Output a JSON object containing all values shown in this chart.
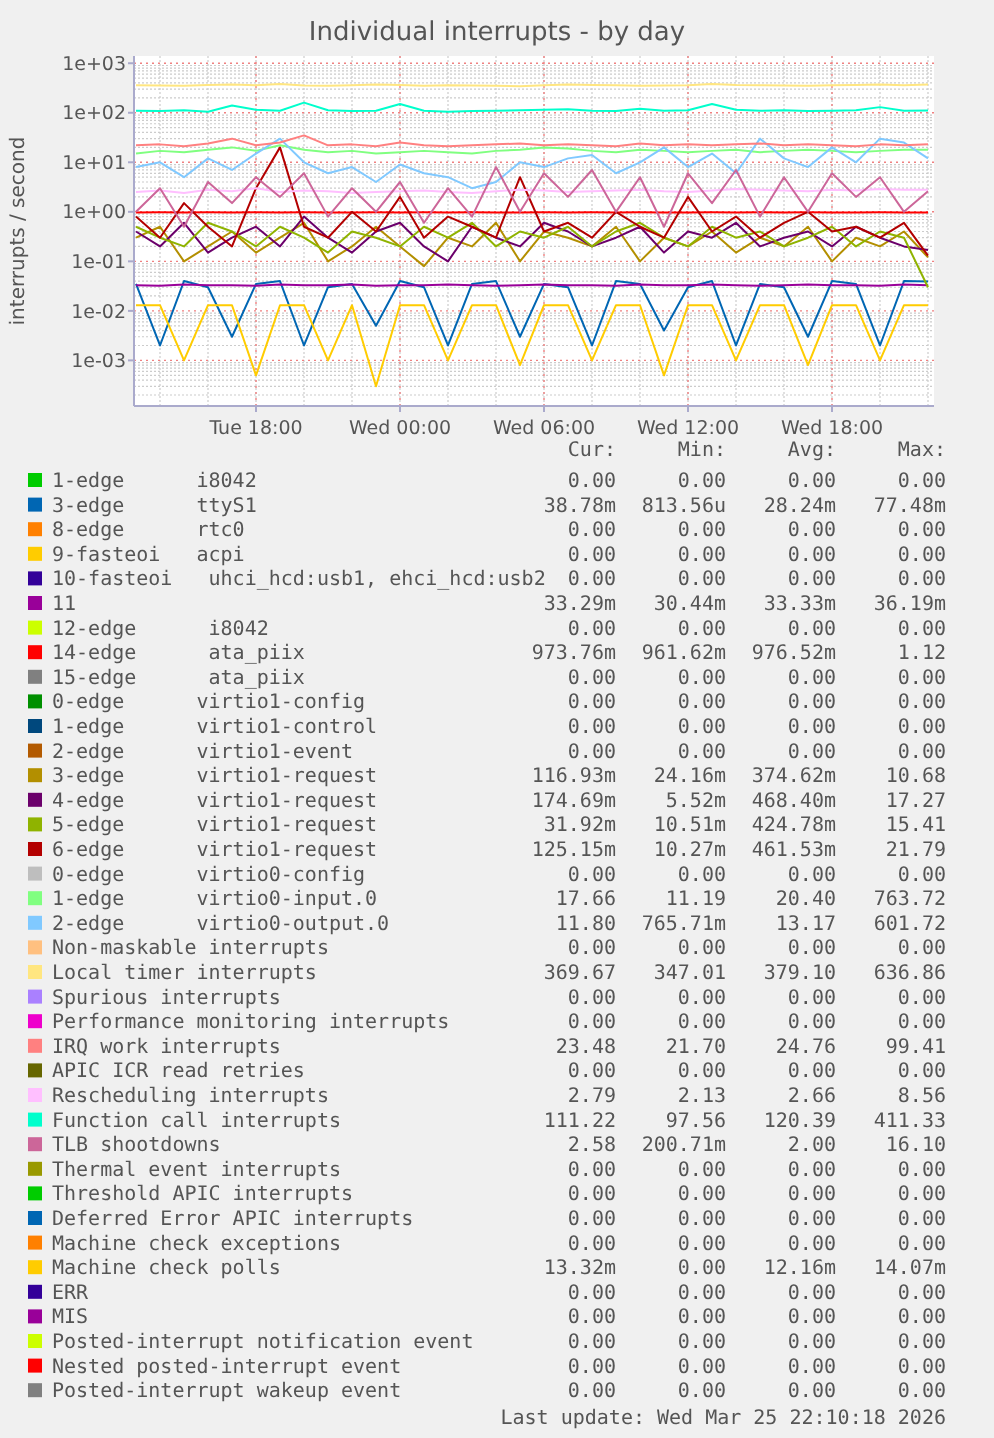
{
  "chart_data": {
    "type": "line",
    "title": "Individual interrupts - by day",
    "ylabel": "interrupts / second",
    "log": "y",
    "grid": true,
    "legend": "bottom",
    "line_style": "solid",
    "marker": "none",
    "xlim": [
      "2026-03-24T12:55",
      "2026-03-25T22:15"
    ],
    "xticks": [
      {
        "value": "2026-03-24T18:00",
        "label": "Tue 18:00"
      },
      {
        "value": "2026-03-25T00:00",
        "label": "Wed 00:00"
      },
      {
        "value": "2026-03-25T06:00",
        "label": "Wed 06:00"
      },
      {
        "value": "2026-03-25T12:00",
        "label": "Wed 12:00"
      },
      {
        "value": "2026-03-25T18:00",
        "label": "Wed 18:00"
      }
    ],
    "ylim": [
      0.00012,
      1400
    ],
    "yticks": [
      {
        "value": 0.001,
        "label": "1e-03"
      },
      {
        "value": 0.01,
        "label": "1e-02"
      },
      {
        "value": 0.1,
        "label": "1e-01"
      },
      {
        "value": 1,
        "label": "1e+00"
      },
      {
        "value": 10,
        "label": "1e+01"
      },
      {
        "value": 100,
        "label": "1e+02"
      },
      {
        "value": 1000,
        "label": "1e+03"
      }
    ],
    "x": [
      "2026-03-24T13:00",
      "2026-03-24T14:00",
      "2026-03-24T15:00",
      "2026-03-24T16:00",
      "2026-03-24T17:00",
      "2026-03-24T18:00",
      "2026-03-24T19:00",
      "2026-03-24T20:00",
      "2026-03-24T21:00",
      "2026-03-24T22:00",
      "2026-03-24T23:00",
      "2026-03-25T00:00",
      "2026-03-25T01:00",
      "2026-03-25T02:00",
      "2026-03-25T03:00",
      "2026-03-25T04:00",
      "2026-03-25T05:00",
      "2026-03-25T06:00",
      "2026-03-25T07:00",
      "2026-03-25T08:00",
      "2026-03-25T09:00",
      "2026-03-25T10:00",
      "2026-03-25T11:00",
      "2026-03-25T12:00",
      "2026-03-25T13:00",
      "2026-03-25T14:00",
      "2026-03-25T15:00",
      "2026-03-25T16:00",
      "2026-03-25T17:00",
      "2026-03-25T18:00",
      "2026-03-25T19:00",
      "2026-03-25T20:00",
      "2026-03-25T21:00",
      "2026-03-25T22:00"
    ],
    "series": [
      {
        "name": "1-edge      i8042",
        "color": "#00cc00",
        "values": [
          null,
          null,
          null,
          null,
          null,
          null,
          null,
          null,
          null,
          null,
          null,
          null,
          null,
          null,
          null,
          null,
          null,
          null,
          null,
          null,
          null,
          null,
          null,
          null,
          null,
          null,
          null,
          null,
          null,
          null,
          null,
          null,
          null,
          null
        ]
      },
      {
        "name": "3-edge      ttyS1",
        "color": "#0066b3",
        "values": [
          0.035,
          0.002,
          0.04,
          0.03,
          0.003,
          0.035,
          0.04,
          0.002,
          0.03,
          0.035,
          0.005,
          0.04,
          0.03,
          0.002,
          0.035,
          0.04,
          0.003,
          0.035,
          0.03,
          0.002,
          0.04,
          0.035,
          0.004,
          0.03,
          0.04,
          0.002,
          0.035,
          0.03,
          0.003,
          0.04,
          0.035,
          0.002,
          0.04,
          0.039
        ]
      },
      {
        "name": "8-edge      rtc0",
        "color": "#ff8000",
        "values": [
          null,
          null,
          null,
          null,
          null,
          null,
          null,
          null,
          null,
          null,
          null,
          null,
          null,
          null,
          null,
          null,
          null,
          null,
          null,
          null,
          null,
          null,
          null,
          null,
          null,
          null,
          null,
          null,
          null,
          null,
          null,
          null,
          null,
          null
        ]
      },
      {
        "name": "9-fasteoi   acpi",
        "color": "#ffcc00",
        "values": [
          null,
          null,
          null,
          null,
          null,
          null,
          null,
          null,
          null,
          null,
          null,
          null,
          null,
          null,
          null,
          null,
          null,
          null,
          null,
          null,
          null,
          null,
          null,
          null,
          null,
          null,
          null,
          null,
          null,
          null,
          null,
          null,
          null,
          null
        ]
      },
      {
        "name": "10-fasteoi   uhci_hcd:usb1, ehci_hcd:usb2",
        "color": "#330099",
        "values": [
          null,
          null,
          null,
          null,
          null,
          null,
          null,
          null,
          null,
          null,
          null,
          null,
          null,
          null,
          null,
          null,
          null,
          null,
          null,
          null,
          null,
          null,
          null,
          null,
          null,
          null,
          null,
          null,
          null,
          null,
          null,
          null,
          null,
          null
        ]
      },
      {
        "name": "11",
        "color": "#990099",
        "values": [
          0.033,
          0.032,
          0.034,
          0.033,
          0.033,
          0.032,
          0.034,
          0.033,
          0.033,
          0.034,
          0.032,
          0.033,
          0.033,
          0.034,
          0.033,
          0.032,
          0.033,
          0.034,
          0.033,
          0.033,
          0.032,
          0.034,
          0.033,
          0.033,
          0.034,
          0.033,
          0.032,
          0.033,
          0.034,
          0.033,
          0.033,
          0.032,
          0.034,
          0.033
        ]
      },
      {
        "name": "12-edge      i8042",
        "color": "#ccff00",
        "values": [
          null,
          null,
          null,
          null,
          null,
          null,
          null,
          null,
          null,
          null,
          null,
          null,
          null,
          null,
          null,
          null,
          null,
          null,
          null,
          null,
          null,
          null,
          null,
          null,
          null,
          null,
          null,
          null,
          null,
          null,
          null,
          null,
          null,
          null
        ]
      },
      {
        "name": "14-edge      ata_piix",
        "color": "#ff0000",
        "values": [
          0.97,
          0.98,
          0.97,
          0.98,
          0.97,
          0.98,
          0.97,
          0.98,
          0.97,
          0.97,
          0.98,
          0.97,
          0.98,
          0.97,
          0.98,
          0.97,
          0.97,
          0.98,
          0.97,
          0.98,
          0.97,
          0.98,
          0.97,
          0.97,
          0.98,
          0.97,
          0.98,
          0.97,
          0.98,
          0.97,
          0.97,
          0.98,
          0.97,
          0.97
        ]
      },
      {
        "name": "15-edge      ata_piix",
        "color": "#808080",
        "values": [
          null,
          null,
          null,
          null,
          null,
          null,
          null,
          null,
          null,
          null,
          null,
          null,
          null,
          null,
          null,
          null,
          null,
          null,
          null,
          null,
          null,
          null,
          null,
          null,
          null,
          null,
          null,
          null,
          null,
          null,
          null,
          null,
          null,
          null
        ]
      },
      {
        "name": "0-edge      virtio1-config",
        "color": "#008f00",
        "values": [
          null,
          null,
          null,
          null,
          null,
          null,
          null,
          null,
          null,
          null,
          null,
          null,
          null,
          null,
          null,
          null,
          null,
          null,
          null,
          null,
          null,
          null,
          null,
          null,
          null,
          null,
          null,
          null,
          null,
          null,
          null,
          null,
          null,
          null
        ]
      },
      {
        "name": "1-edge      virtio1-control",
        "color": "#00487d",
        "values": [
          null,
          null,
          null,
          null,
          null,
          null,
          null,
          null,
          null,
          null,
          null,
          null,
          null,
          null,
          null,
          null,
          null,
          null,
          null,
          null,
          null,
          null,
          null,
          null,
          null,
          null,
          null,
          null,
          null,
          null,
          null,
          null,
          null,
          null
        ]
      },
      {
        "name": "2-edge      virtio1-event",
        "color": "#b35a00",
        "values": [
          null,
          null,
          null,
          null,
          null,
          null,
          null,
          null,
          null,
          null,
          null,
          null,
          null,
          null,
          null,
          null,
          null,
          null,
          null,
          null,
          null,
          null,
          null,
          null,
          null,
          null,
          null,
          null,
          null,
          null,
          null,
          null,
          null,
          null
        ]
      },
      {
        "name": "3-edge      virtio1-request",
        "color": "#b38f00",
        "values": [
          0.3,
          0.5,
          0.1,
          0.2,
          0.4,
          0.15,
          0.3,
          0.6,
          0.1,
          0.2,
          0.5,
          0.2,
          0.08,
          0.3,
          0.2,
          0.6,
          0.1,
          0.4,
          0.3,
          0.2,
          0.5,
          0.1,
          0.3,
          0.2,
          0.4,
          0.15,
          0.3,
          0.2,
          0.5,
          0.1,
          0.3,
          0.2,
          0.4,
          0.12
        ]
      },
      {
        "name": "4-edge      virtio1-request",
        "color": "#6b006b",
        "values": [
          0.4,
          0.2,
          0.6,
          0.15,
          0.3,
          0.5,
          0.2,
          0.8,
          0.3,
          0.15,
          0.4,
          0.6,
          0.2,
          0.1,
          0.5,
          0.3,
          0.2,
          0.6,
          0.4,
          0.2,
          0.3,
          0.5,
          0.15,
          0.4,
          0.3,
          0.6,
          0.2,
          0.3,
          0.4,
          0.2,
          0.5,
          0.3,
          0.2,
          0.17
        ]
      },
      {
        "name": "5-edge      virtio1-request",
        "color": "#8fb300",
        "values": [
          0.5,
          0.3,
          0.2,
          0.6,
          0.4,
          0.2,
          0.5,
          0.3,
          0.15,
          0.4,
          0.3,
          0.2,
          0.5,
          0.3,
          0.6,
          0.2,
          0.4,
          0.3,
          0.5,
          0.2,
          0.4,
          0.6,
          0.3,
          0.2,
          0.5,
          0.3,
          0.4,
          0.2,
          0.3,
          0.5,
          0.2,
          0.4,
          0.3,
          0.03
        ]
      },
      {
        "name": "6-edge      virtio1-request",
        "color": "#b30000",
        "values": [
          0.8,
          0.3,
          1.5,
          0.5,
          0.2,
          3,
          20,
          0.5,
          0.3,
          1,
          0.4,
          2,
          0.3,
          0.8,
          0.5,
          0.3,
          5,
          0.4,
          0.6,
          0.3,
          1,
          0.5,
          0.3,
          2,
          0.4,
          0.8,
          0.3,
          0.6,
          1,
          0.4,
          0.5,
          0.3,
          0.6,
          0.13
        ]
      },
      {
        "name": "0-edge      virtio0-config",
        "color": "#bebebe",
        "values": [
          null,
          null,
          null,
          null,
          null,
          null,
          null,
          null,
          null,
          null,
          null,
          null,
          null,
          null,
          null,
          null,
          null,
          null,
          null,
          null,
          null,
          null,
          null,
          null,
          null,
          null,
          null,
          null,
          null,
          null,
          null,
          null,
          null,
          null
        ]
      },
      {
        "name": "1-edge      virtio0-input.0",
        "color": "#80ff80",
        "values": [
          15,
          17,
          16,
          18,
          20,
          17,
          22,
          18,
          16,
          17,
          15,
          16,
          17,
          16,
          15,
          17,
          18,
          20,
          19,
          17,
          16,
          18,
          17,
          16,
          17,
          18,
          16,
          17,
          18,
          17,
          16,
          17,
          18,
          18
        ]
      },
      {
        "name": "2-edge      virtio0-output.0",
        "color": "#80c9ff",
        "values": [
          8,
          10,
          5,
          12,
          7,
          15,
          30,
          10,
          6,
          8,
          4,
          9,
          6,
          5,
          3,
          4,
          10,
          8,
          12,
          14,
          6,
          10,
          20,
          8,
          15,
          6,
          30,
          12,
          8,
          20,
          10,
          30,
          25,
          12
        ]
      },
      {
        "name": "Non-maskable interrupts",
        "color": "#ffc080",
        "values": [
          null,
          null,
          null,
          null,
          null,
          null,
          null,
          null,
          null,
          null,
          null,
          null,
          null,
          null,
          null,
          null,
          null,
          null,
          null,
          null,
          null,
          null,
          null,
          null,
          null,
          null,
          null,
          null,
          null,
          null,
          null,
          null,
          null,
          null
        ]
      },
      {
        "name": "Local timer interrupts",
        "color": "#ffe680",
        "values": [
          360,
          355,
          350,
          365,
          370,
          360,
          380,
          355,
          350,
          360,
          370,
          365,
          350,
          360,
          355,
          350,
          345,
          360,
          370,
          365,
          360,
          350,
          355,
          360,
          380,
          365,
          360,
          355,
          350,
          360,
          365,
          370,
          360,
          370
        ]
      },
      {
        "name": "Spurious interrupts",
        "color": "#aa80ff",
        "values": [
          null,
          null,
          null,
          null,
          null,
          null,
          null,
          null,
          null,
          null,
          null,
          null,
          null,
          null,
          null,
          null,
          null,
          null,
          null,
          null,
          null,
          null,
          null,
          null,
          null,
          null,
          null,
          null,
          null,
          null,
          null,
          null,
          null,
          null
        ]
      },
      {
        "name": "Performance monitoring interrupts",
        "color": "#ee00cc",
        "values": [
          null,
          null,
          null,
          null,
          null,
          null,
          null,
          null,
          null,
          null,
          null,
          null,
          null,
          null,
          null,
          null,
          null,
          null,
          null,
          null,
          null,
          null,
          null,
          null,
          null,
          null,
          null,
          null,
          null,
          null,
          null,
          null,
          null,
          null
        ]
      },
      {
        "name": "IRQ work interrupts",
        "color": "#ff8080",
        "values": [
          22,
          23,
          21,
          24,
          30,
          22,
          25,
          35,
          22,
          23,
          21,
          25,
          22,
          21,
          22,
          23,
          24,
          22,
          23,
          22,
          21,
          24,
          22,
          23,
          22,
          23,
          24,
          22,
          23,
          22,
          21,
          23,
          22,
          23
        ]
      },
      {
        "name": "APIC ICR read retries",
        "color": "#666600",
        "values": [
          null,
          null,
          null,
          null,
          null,
          null,
          null,
          null,
          null,
          null,
          null,
          null,
          null,
          null,
          null,
          null,
          null,
          null,
          null,
          null,
          null,
          null,
          null,
          null,
          null,
          null,
          null,
          null,
          null,
          null,
          null,
          null,
          null,
          null
        ]
      },
      {
        "name": "Rescheduling interrupts",
        "color": "#ffbfff",
        "values": [
          2.5,
          2.7,
          2.4,
          2.8,
          2.6,
          3,
          2.5,
          2.7,
          2.6,
          2.4,
          2.5,
          2.6,
          2.7,
          2.5,
          2.4,
          2.6,
          2.8,
          2.7,
          2.5,
          2.6,
          2.7,
          2.8,
          2.6,
          2.5,
          2.7,
          2.9,
          2.8,
          2.7,
          2.6,
          2.8,
          2.7,
          2.9,
          2.8,
          2.8
        ]
      },
      {
        "name": "Function call interrupts",
        "color": "#00ffcc",
        "values": [
          110,
          108,
          112,
          105,
          140,
          115,
          110,
          160,
          112,
          108,
          110,
          150,
          110,
          105,
          108,
          110,
          112,
          115,
          118,
          110,
          108,
          120,
          110,
          112,
          150,
          115,
          110,
          112,
          108,
          110,
          112,
          130,
          110,
          111
        ]
      },
      {
        "name": "TLB shootdowns",
        "color": "#cc6699",
        "values": [
          1,
          3,
          0.5,
          4,
          1.5,
          5,
          2,
          6,
          0.8,
          3,
          1,
          4,
          0.6,
          3,
          0.8,
          8,
          1,
          6,
          2,
          7,
          1,
          5,
          0.5,
          6,
          1.5,
          7,
          0.8,
          5,
          1,
          6,
          2,
          5,
          1,
          2.6
        ]
      },
      {
        "name": "Thermal event interrupts",
        "color": "#999900",
        "values": [
          null,
          null,
          null,
          null,
          null,
          null,
          null,
          null,
          null,
          null,
          null,
          null,
          null,
          null,
          null,
          null,
          null,
          null,
          null,
          null,
          null,
          null,
          null,
          null,
          null,
          null,
          null,
          null,
          null,
          null,
          null,
          null,
          null,
          null
        ]
      },
      {
        "name": "Threshold APIC interrupts",
        "color": "#00cc00",
        "values": [
          null,
          null,
          null,
          null,
          null,
          null,
          null,
          null,
          null,
          null,
          null,
          null,
          null,
          null,
          null,
          null,
          null,
          null,
          null,
          null,
          null,
          null,
          null,
          null,
          null,
          null,
          null,
          null,
          null,
          null,
          null,
          null,
          null,
          null
        ]
      },
      {
        "name": "Deferred Error APIC interrupts",
        "color": "#0066b3",
        "values": [
          null,
          null,
          null,
          null,
          null,
          null,
          null,
          null,
          null,
          null,
          null,
          null,
          null,
          null,
          null,
          null,
          null,
          null,
          null,
          null,
          null,
          null,
          null,
          null,
          null,
          null,
          null,
          null,
          null,
          null,
          null,
          null,
          null,
          null
        ]
      },
      {
        "name": "Machine check exceptions",
        "color": "#ff8000",
        "values": [
          null,
          null,
          null,
          null,
          null,
          null,
          null,
          null,
          null,
          null,
          null,
          null,
          null,
          null,
          null,
          null,
          null,
          null,
          null,
          null,
          null,
          null,
          null,
          null,
          null,
          null,
          null,
          null,
          null,
          null,
          null,
          null,
          null,
          null
        ]
      },
      {
        "name": "Machine check polls",
        "color": "#ffcc00",
        "values": [
          0.013,
          0.013,
          0.001,
          0.013,
          0.013,
          0.0005,
          0.013,
          0.013,
          0.001,
          0.013,
          0.0003,
          0.013,
          0.013,
          0.001,
          0.013,
          0.013,
          0.0008,
          0.013,
          0.013,
          0.001,
          0.013,
          0.013,
          0.0005,
          0.013,
          0.013,
          0.001,
          0.013,
          0.013,
          0.0008,
          0.013,
          0.013,
          0.001,
          0.013,
          0.013
        ]
      },
      {
        "name": "ERR",
        "color": "#330099",
        "values": [
          null,
          null,
          null,
          null,
          null,
          null,
          null,
          null,
          null,
          null,
          null,
          null,
          null,
          null,
          null,
          null,
          null,
          null,
          null,
          null,
          null,
          null,
          null,
          null,
          null,
          null,
          null,
          null,
          null,
          null,
          null,
          null,
          null,
          null
        ]
      },
      {
        "name": "MIS",
        "color": "#990099",
        "values": [
          null,
          null,
          null,
          null,
          null,
          null,
          null,
          null,
          null,
          null,
          null,
          null,
          null,
          null,
          null,
          null,
          null,
          null,
          null,
          null,
          null,
          null,
          null,
          null,
          null,
          null,
          null,
          null,
          null,
          null,
          null,
          null,
          null,
          null
        ]
      },
      {
        "name": "Posted-interrupt notification event",
        "color": "#ccff00",
        "values": [
          null,
          null,
          null,
          null,
          null,
          null,
          null,
          null,
          null,
          null,
          null,
          null,
          null,
          null,
          null,
          null,
          null,
          null,
          null,
          null,
          null,
          null,
          null,
          null,
          null,
          null,
          null,
          null,
          null,
          null,
          null,
          null,
          null,
          null
        ]
      },
      {
        "name": "Nested posted-interrupt event",
        "color": "#ff0000",
        "values": [
          null,
          null,
          null,
          null,
          null,
          null,
          null,
          null,
          null,
          null,
          null,
          null,
          null,
          null,
          null,
          null,
          null,
          null,
          null,
          null,
          null,
          null,
          null,
          null,
          null,
          null,
          null,
          null,
          null,
          null,
          null,
          null,
          null,
          null
        ]
      },
      {
        "name": "Posted-interrupt wakeup event",
        "color": "#808080",
        "values": [
          null,
          null,
          null,
          null,
          null,
          null,
          null,
          null,
          null,
          null,
          null,
          null,
          null,
          null,
          null,
          null,
          null,
          null,
          null,
          null,
          null,
          null,
          null,
          null,
          null,
          null,
          null,
          null,
          null,
          null,
          null,
          null,
          null,
          null
        ]
      }
    ],
    "annotations": [
      "Cur: Min: Avg: Max:",
      "0.00 0.00 0.00 0.00",
      "38.78m 813.56u 28.24m 77.48m",
      "0.00 0.00 0.00 0.00",
      "0.00 0.00 0.00 0.00",
      "0.00 0.00 0.00 0.00",
      "33.29m 30.44m 33.33m 36.19m",
      "0.00 0.00 0.00 0.00",
      "973.76m 961.62m 976.52m 1.12",
      "0.00 0.00 0.00 0.00",
      "0.00 0.00 0.00 0.00",
      "0.00 0.00 0.00 0.00",
      "0.00 0.00 0.00 0.00",
      "116.93m 24.16m 374.62m 10.68",
      "174.69m 5.52m 468.40m 17.27",
      "31.92m 10.51m 424.78m 15.41",
      "125.15m 10.27m 461.53m 21.79",
      "0.00 0.00 0.00 0.00",
      "17.66 11.19 20.40 763.72",
      "11.80 765.71m 13.17 601.72",
      "0.00 0.00 0.00 0.00",
      "369.67 347.01 379.10 636.86",
      "0.00 0.00 0.00 0.00",
      "0.00 0.00 0.00 0.00",
      "23.48 21.70 24.76 99.41",
      "0.00 0.00 0.00 0.00",
      "2.79 2.13 2.66 8.56",
      "111.22 97.56 120.39 411.33",
      "2.58 200.71m 2.00 16.10",
      "0.00 0.00 0.00 0.00",
      "0.00 0.00 0.00 0.00",
      "0.00 0.00 0.00 0.00",
      "0.00 0.00 0.00 0.00",
      "13.32m 0.00 12.16m 14.07m",
      "0.00 0.00 0.00 0.00",
      "0.00 0.00 0.00 0.00",
      "0.00 0.00 0.00 0.00",
      "0.00 0.00 0.00 0.00",
      "0.00 0.00 0.00 0.00",
      "Last update: Wed Mar 25 22:10:18 2026"
    ]
  }
}
